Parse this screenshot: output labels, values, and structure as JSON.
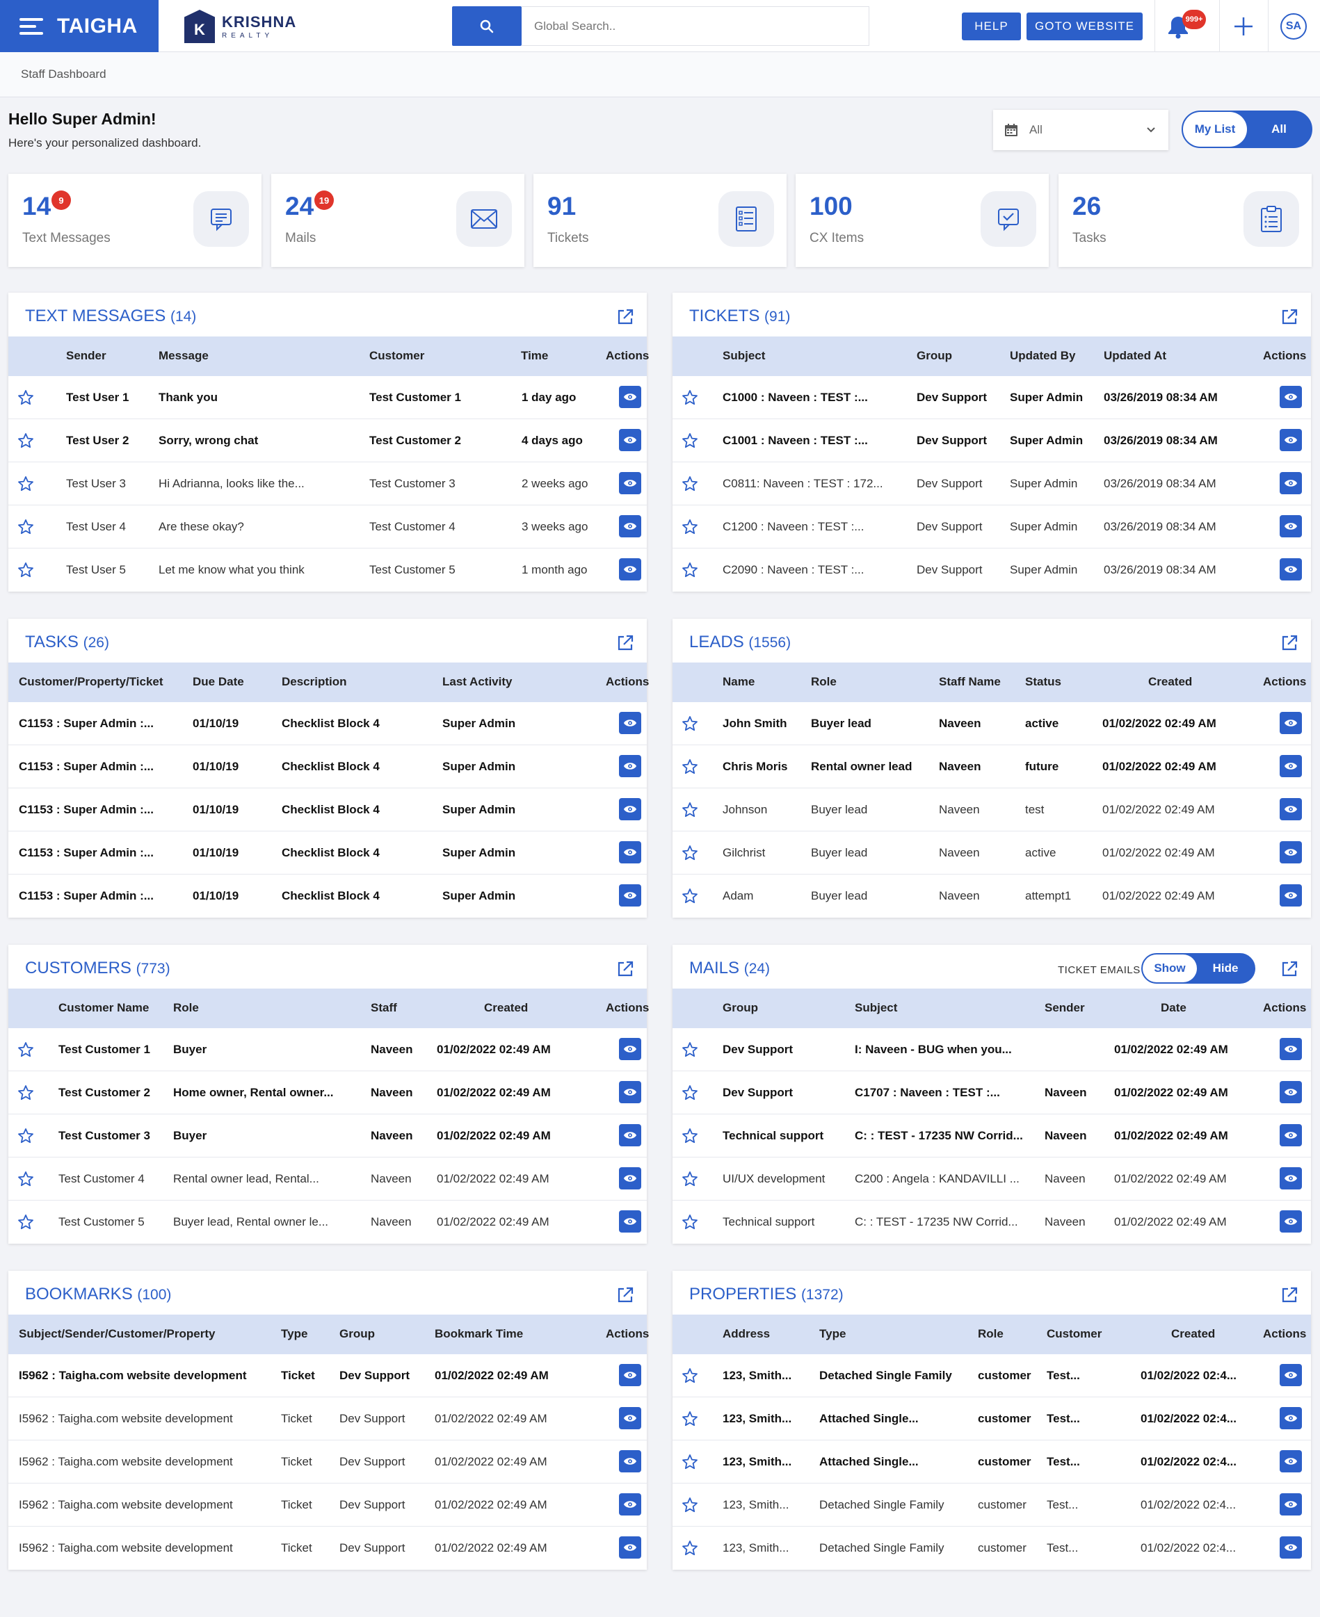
{
  "header": {
    "brand": "TAIGHA",
    "client_logo_letter": "K",
    "client_name": "KRISHNA",
    "client_sub": "REALTY",
    "search_placeholder": "Global Search..",
    "help_label": "HELP",
    "website_label": "GOTO WEBSITE",
    "notif_badge": "999+",
    "avatar": "SA",
    "accent": "#2c5fc9"
  },
  "breadcrumb": "Staff Dashboard",
  "greeting": {
    "title": "Hello Super Admin!",
    "subtitle": "Here's your personalized dashboard."
  },
  "filter": {
    "value": "All",
    "mylist": "My List",
    "all": "All"
  },
  "stats": [
    {
      "value": "14",
      "badge": "9",
      "label": "Text Messages",
      "icon": "message-icon"
    },
    {
      "value": "24",
      "badge": "19",
      "label": "Mails",
      "icon": "mail-icon"
    },
    {
      "value": "91",
      "badge": "",
      "label": "Tickets",
      "icon": "ticket-icon"
    },
    {
      "value": "100",
      "badge": "",
      "label": "CX Items",
      "icon": "cx-chat-icon"
    },
    {
      "value": "26",
      "badge": "",
      "label": "Tasks",
      "icon": "clipboard-icon"
    }
  ],
  "panels": {
    "text_messages": {
      "title": "TEXT MESSAGES",
      "count": "(14)",
      "headers": [
        "Sender",
        "Message",
        "Customer",
        "Time",
        "Actions"
      ],
      "rows": [
        {
          "bold": true,
          "cells": [
            "Test User 1",
            "Thank you",
            "Test Customer 1",
            "1 day ago"
          ]
        },
        {
          "bold": true,
          "cells": [
            "Test User 2",
            "Sorry, wrong chat",
            "Test Customer 2",
            "4 days ago"
          ]
        },
        {
          "bold": false,
          "cells": [
            "Test User 3",
            "Hi Adrianna, looks like the...",
            "Test Customer 3",
            "2 weeks ago"
          ]
        },
        {
          "bold": false,
          "cells": [
            "Test User 4",
            "Are these okay?",
            "Test Customer 4",
            "3 weeks ago"
          ]
        },
        {
          "bold": false,
          "cells": [
            "Test User 5",
            "Let me know what you think",
            "Test Customer 5",
            "1 month ago"
          ]
        }
      ]
    },
    "tickets": {
      "title": "TICKETS",
      "count": "(91)",
      "headers": [
        "Subject",
        "Group",
        "Updated By",
        "Updated At",
        "Actions"
      ],
      "rows": [
        {
          "bold": true,
          "cells": [
            "C1000 : Naveen : TEST :...",
            "Dev Support",
            "Super Admin",
            "03/26/2019 08:34 AM"
          ]
        },
        {
          "bold": true,
          "cells": [
            "C1001 : Naveen : TEST :...",
            "Dev Support",
            "Super Admin",
            "03/26/2019 08:34 AM"
          ]
        },
        {
          "bold": false,
          "cells": [
            "C0811: Naveen : TEST : 172...",
            "Dev Support",
            "Super Admin",
            "03/26/2019 08:34 AM"
          ]
        },
        {
          "bold": false,
          "cells": [
            "C1200 : Naveen : TEST :...",
            "Dev Support",
            "Super Admin",
            "03/26/2019 08:34 AM"
          ]
        },
        {
          "bold": false,
          "cells": [
            "C2090 : Naveen : TEST :...",
            "Dev Support",
            "Super Admin",
            "03/26/2019 08:34 AM"
          ]
        }
      ]
    },
    "tasks": {
      "title": "TASKS",
      "count": "(26)",
      "headers": [
        "Customer/Property/Ticket",
        "Due Date",
        "Description",
        "Last Activity",
        "Actions"
      ],
      "rows": [
        {
          "bold": true,
          "cells": [
            "C1153 : Super Admin :...",
            "01/10/19",
            "Checklist Block 4",
            "Super Admin"
          ]
        },
        {
          "bold": true,
          "cells": [
            "C1153 : Super Admin :...",
            "01/10/19",
            "Checklist Block 4",
            "Super Admin"
          ]
        },
        {
          "bold": true,
          "cells": [
            "C1153 : Super Admin :...",
            "01/10/19",
            "Checklist Block 4",
            "Super Admin"
          ]
        },
        {
          "bold": true,
          "cells": [
            "C1153 : Super Admin :...",
            "01/10/19",
            "Checklist Block 4",
            "Super Admin"
          ]
        },
        {
          "bold": true,
          "cells": [
            "C1153 : Super Admin :...",
            "01/10/19",
            "Checklist Block 4",
            "Super Admin"
          ]
        }
      ]
    },
    "leads": {
      "title": "LEADS",
      "count": "(1556)",
      "headers": [
        "Name",
        "Role",
        "Staff Name",
        "Status",
        "Created",
        "Actions"
      ],
      "rows": [
        {
          "bold": true,
          "cells": [
            "John Smith",
            "Buyer lead",
            "Naveen",
            "active",
            "01/02/2022 02:49 AM"
          ]
        },
        {
          "bold": true,
          "cells": [
            "Chris Moris",
            "Rental owner lead",
            "Naveen",
            "future",
            "01/02/2022 02:49 AM"
          ]
        },
        {
          "bold": false,
          "cells": [
            "Johnson",
            "Buyer lead",
            "Naveen",
            "test",
            "01/02/2022 02:49 AM"
          ]
        },
        {
          "bold": false,
          "cells": [
            "Gilchrist",
            "Buyer lead",
            "Naveen",
            "active",
            "01/02/2022 02:49 AM"
          ]
        },
        {
          "bold": false,
          "cells": [
            "Adam",
            "Buyer lead",
            "Naveen",
            "attempt1",
            "01/02/2022 02:49 AM"
          ]
        }
      ]
    },
    "customers": {
      "title": "CUSTOMERS",
      "count": "(773)",
      "headers": [
        "Customer Name",
        "Role",
        "Staff",
        "Created",
        "Actions"
      ],
      "rows": [
        {
          "bold": true,
          "cells": [
            "Test Customer 1",
            "Buyer",
            "Naveen",
            "01/02/2022 02:49 AM"
          ]
        },
        {
          "bold": true,
          "cells": [
            "Test Customer 2",
            "Home owner, Rental owner...",
            "Naveen",
            "01/02/2022 02:49 AM"
          ]
        },
        {
          "bold": true,
          "cells": [
            "Test Customer 3",
            "Buyer",
            "Naveen",
            "01/02/2022 02:49 AM"
          ]
        },
        {
          "bold": false,
          "cells": [
            "Test Customer 4",
            "Rental owner lead, Rental...",
            "Naveen",
            "01/02/2022 02:49 AM"
          ]
        },
        {
          "bold": false,
          "cells": [
            "Test Customer 5",
            "Buyer lead, Rental owner le...",
            "Naveen",
            "01/02/2022 02:49 AM"
          ]
        }
      ]
    },
    "mails": {
      "title": "MAILS",
      "count": "(24)",
      "toggle_label": "TICKET EMAILS :",
      "show": "Show",
      "hide": "Hide",
      "headers": [
        "Group",
        "Subject",
        "Sender",
        "Date",
        "Actions"
      ],
      "rows": [
        {
          "bold": true,
          "cells": [
            "Dev Support",
            "I: Naveen - BUG when you...",
            "",
            "01/02/2022 02:49 AM"
          ]
        },
        {
          "bold": true,
          "cells": [
            "Dev Support",
            "C1707 : Naveen : TEST :...",
            "Naveen",
            "01/02/2022 02:49 AM"
          ]
        },
        {
          "bold": true,
          "cells": [
            "Technical support",
            "C: : TEST - 17235 NW Corrid...",
            "Naveen",
            "01/02/2022 02:49 AM"
          ]
        },
        {
          "bold": false,
          "cells": [
            "UI/UX development",
            "C200 : Angela : KANDAVILLI ...",
            "Naveen",
            "01/02/2022 02:49 AM"
          ]
        },
        {
          "bold": false,
          "cells": [
            "Technical support",
            "C: : TEST - 17235 NW Corrid...",
            "Naveen",
            "01/02/2022 02:49 AM"
          ]
        }
      ]
    },
    "bookmarks": {
      "title": "BOOKMARKS",
      "count": "(100)",
      "headers": [
        "Subject/Sender/Customer/Property",
        "Type",
        "Group",
        "Bookmark Time",
        "Actions"
      ],
      "rows": [
        {
          "bold": true,
          "cells": [
            "I5962 : Taigha.com website development",
            "Ticket",
            "Dev Support",
            "01/02/2022 02:49 AM"
          ]
        },
        {
          "bold": false,
          "cells": [
            "I5962 : Taigha.com website development",
            "Ticket",
            "Dev Support",
            "01/02/2022 02:49 AM"
          ]
        },
        {
          "bold": false,
          "cells": [
            "I5962 : Taigha.com website development",
            "Ticket",
            "Dev Support",
            "01/02/2022 02:49 AM"
          ]
        },
        {
          "bold": false,
          "cells": [
            "I5962 : Taigha.com website development",
            "Ticket",
            "Dev Support",
            "01/02/2022 02:49 AM"
          ]
        },
        {
          "bold": false,
          "cells": [
            "I5962 : Taigha.com website development",
            "Ticket",
            "Dev Support",
            "01/02/2022 02:49 AM"
          ]
        }
      ]
    },
    "properties": {
      "title": "PROPERTIES",
      "count": "(1372)",
      "headers": [
        "Address",
        "Type",
        "Role",
        "Customer",
        "Created",
        "Actions"
      ],
      "rows": [
        {
          "bold": true,
          "cells": [
            "123, Smith...",
            "Detached Single Family",
            "customer",
            "Test...",
            "01/02/2022 02:4..."
          ]
        },
        {
          "bold": true,
          "cells": [
            "123, Smith...",
            "Attached Single...",
            "customer",
            "Test...",
            "01/02/2022 02:4..."
          ]
        },
        {
          "bold": true,
          "cells": [
            "123, Smith...",
            "Attached Single...",
            "customer",
            "Test...",
            "01/02/2022 02:4..."
          ]
        },
        {
          "bold": false,
          "cells": [
            "123, Smith...",
            "Detached Single Family",
            "customer",
            "Test...",
            "01/02/2022 02:4..."
          ]
        },
        {
          "bold": false,
          "cells": [
            "123, Smith...",
            "Detached Single Family",
            "customer",
            "Test...",
            "01/02/2022 02:4..."
          ]
        }
      ]
    }
  }
}
